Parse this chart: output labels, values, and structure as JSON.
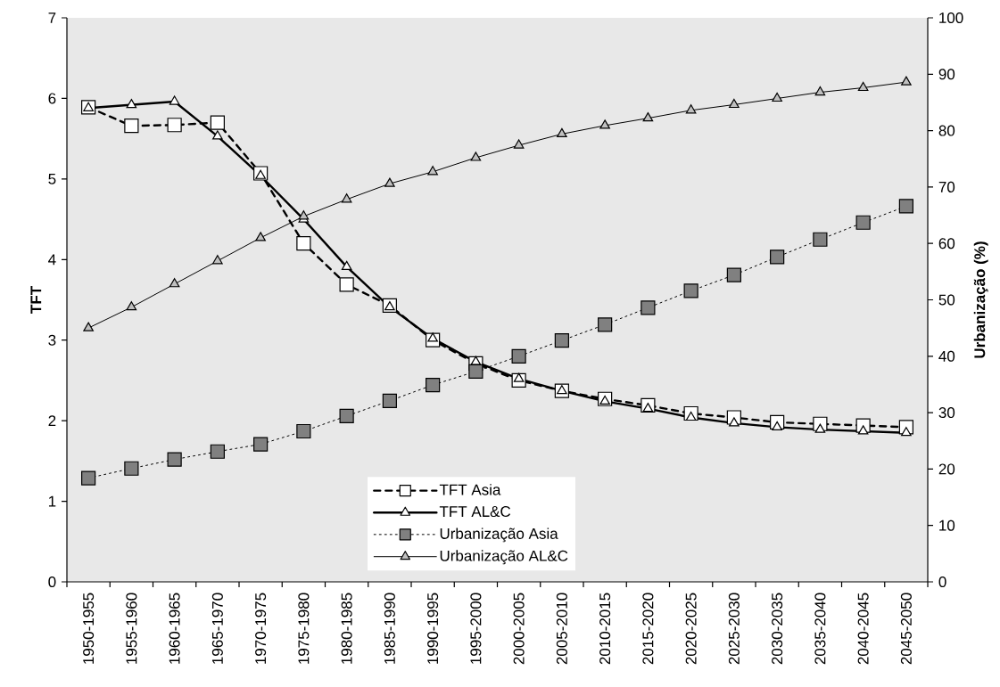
{
  "chart_data": {
    "type": "line",
    "ylabel": "TFT",
    "y2label": "Urbanização (%)",
    "categories": [
      "1950-1955",
      "1955-1960",
      "1960-1965",
      "1965-1970",
      "1970-1975",
      "1975-1980",
      "1980-1985",
      "1985-1990",
      "1990-1995",
      "1995-2000",
      "2000-2005",
      "2005-2010",
      "2010-2015",
      "2015-2020",
      "2020-2025",
      "2025-2030",
      "2030-2035",
      "2035-2040",
      "2040-2045",
      "2045-2050"
    ],
    "ylim": [
      0,
      7
    ],
    "yticks": [
      0,
      1,
      2,
      3,
      4,
      5,
      6,
      7
    ],
    "y2lim": [
      0,
      100
    ],
    "y2ticks": [
      0,
      10,
      20,
      30,
      40,
      50,
      60,
      70,
      80,
      90,
      100
    ],
    "legend": "bottom",
    "grid": false,
    "series": [
      {
        "name": "TFT Asia",
        "axis": "y",
        "marker": "square",
        "line_style": "dashed",
        "color": "#000000",
        "colors": [
          "#ffffff",
          "#ffffff",
          "#ffffff",
          "#ffffff",
          "#ffffff",
          "#ffffff",
          "#ffffff",
          "#ffffff",
          "#ffffff",
          "#ffffff",
          "#ffffff",
          "#ffffff",
          "#ffffff",
          "#ffffff",
          "#ffffff",
          "#ffffff",
          "#ffffff",
          "#ffffff",
          "#ffffff",
          "#ffffff"
        ],
        "values": [
          5.89,
          5.66,
          5.67,
          5.7,
          5.07,
          4.2,
          3.69,
          3.43,
          3.0,
          2.71,
          2.5,
          2.37,
          2.27,
          2.19,
          2.09,
          2.04,
          1.98,
          1.96,
          1.94,
          1.92
        ]
      },
      {
        "name": "TFT AL&C",
        "axis": "y",
        "marker": "triangle",
        "line_style": "solid",
        "color": "#000000",
        "colors": [
          "#ffffff",
          "#ffffff",
          "#ffffff",
          "#ffffff",
          "#ffffff",
          "#ffffff",
          "#ffffff",
          "#ffffff",
          "#ffffff",
          "#ffffff",
          "#ffffff",
          "#ffffff",
          "#ffffff",
          "#ffffff",
          "#ffffff",
          "#ffffff",
          "#ffffff",
          "#ffffff",
          "#ffffff",
          "#ffffff"
        ],
        "values": [
          5.88,
          5.92,
          5.96,
          5.53,
          5.04,
          4.5,
          3.91,
          3.41,
          3.02,
          2.73,
          2.52,
          2.37,
          2.24,
          2.15,
          2.04,
          1.97,
          1.92,
          1.89,
          1.87,
          1.85
        ]
      },
      {
        "name": "Urbanização Asia",
        "axis": "y2",
        "marker": "square",
        "line_style": "dotted",
        "color": "#000000",
        "colors": [
          "#808080",
          "#808080",
          "#808080",
          "#808080",
          "#808080",
          "#808080",
          "#808080",
          "#808080",
          "#808080",
          "#808080",
          "#808080",
          "#808080",
          "#808080",
          "#808080",
          "#808080",
          "#808080",
          "#808080",
          "#808080",
          "#808080",
          "#808080"
        ],
        "values": [
          18.4,
          20.1,
          21.7,
          23.1,
          24.4,
          26.7,
          29.4,
          32.1,
          34.9,
          37.3,
          40.0,
          42.8,
          45.6,
          48.6,
          51.6,
          54.4,
          57.6,
          60.7,
          63.7,
          66.6
        ]
      },
      {
        "name": "Urbanização AL&C",
        "axis": "y2",
        "marker": "triangle",
        "line_style": "solid",
        "color": "#000000",
        "colors": [
          "#c0c0c0",
          "#c0c0c0",
          "#c0c0c0",
          "#c0c0c0",
          "#c0c0c0",
          "#c0c0c0",
          "#c0c0c0",
          "#c0c0c0",
          "#c0c0c0",
          "#c0c0c0",
          "#c0c0c0",
          "#c0c0c0",
          "#c0c0c0",
          "#c0c0c0",
          "#c0c0c0",
          "#c0c0c0",
          "#c0c0c0",
          "#c0c0c0",
          "#c0c0c0",
          "#c0c0c0"
        ],
        "values": [
          45.0,
          48.7,
          52.8,
          56.9,
          61.0,
          64.8,
          67.8,
          70.6,
          72.7,
          75.2,
          77.4,
          79.4,
          80.9,
          82.2,
          83.6,
          84.6,
          85.7,
          86.8,
          87.6,
          88.6
        ]
      }
    ]
  }
}
